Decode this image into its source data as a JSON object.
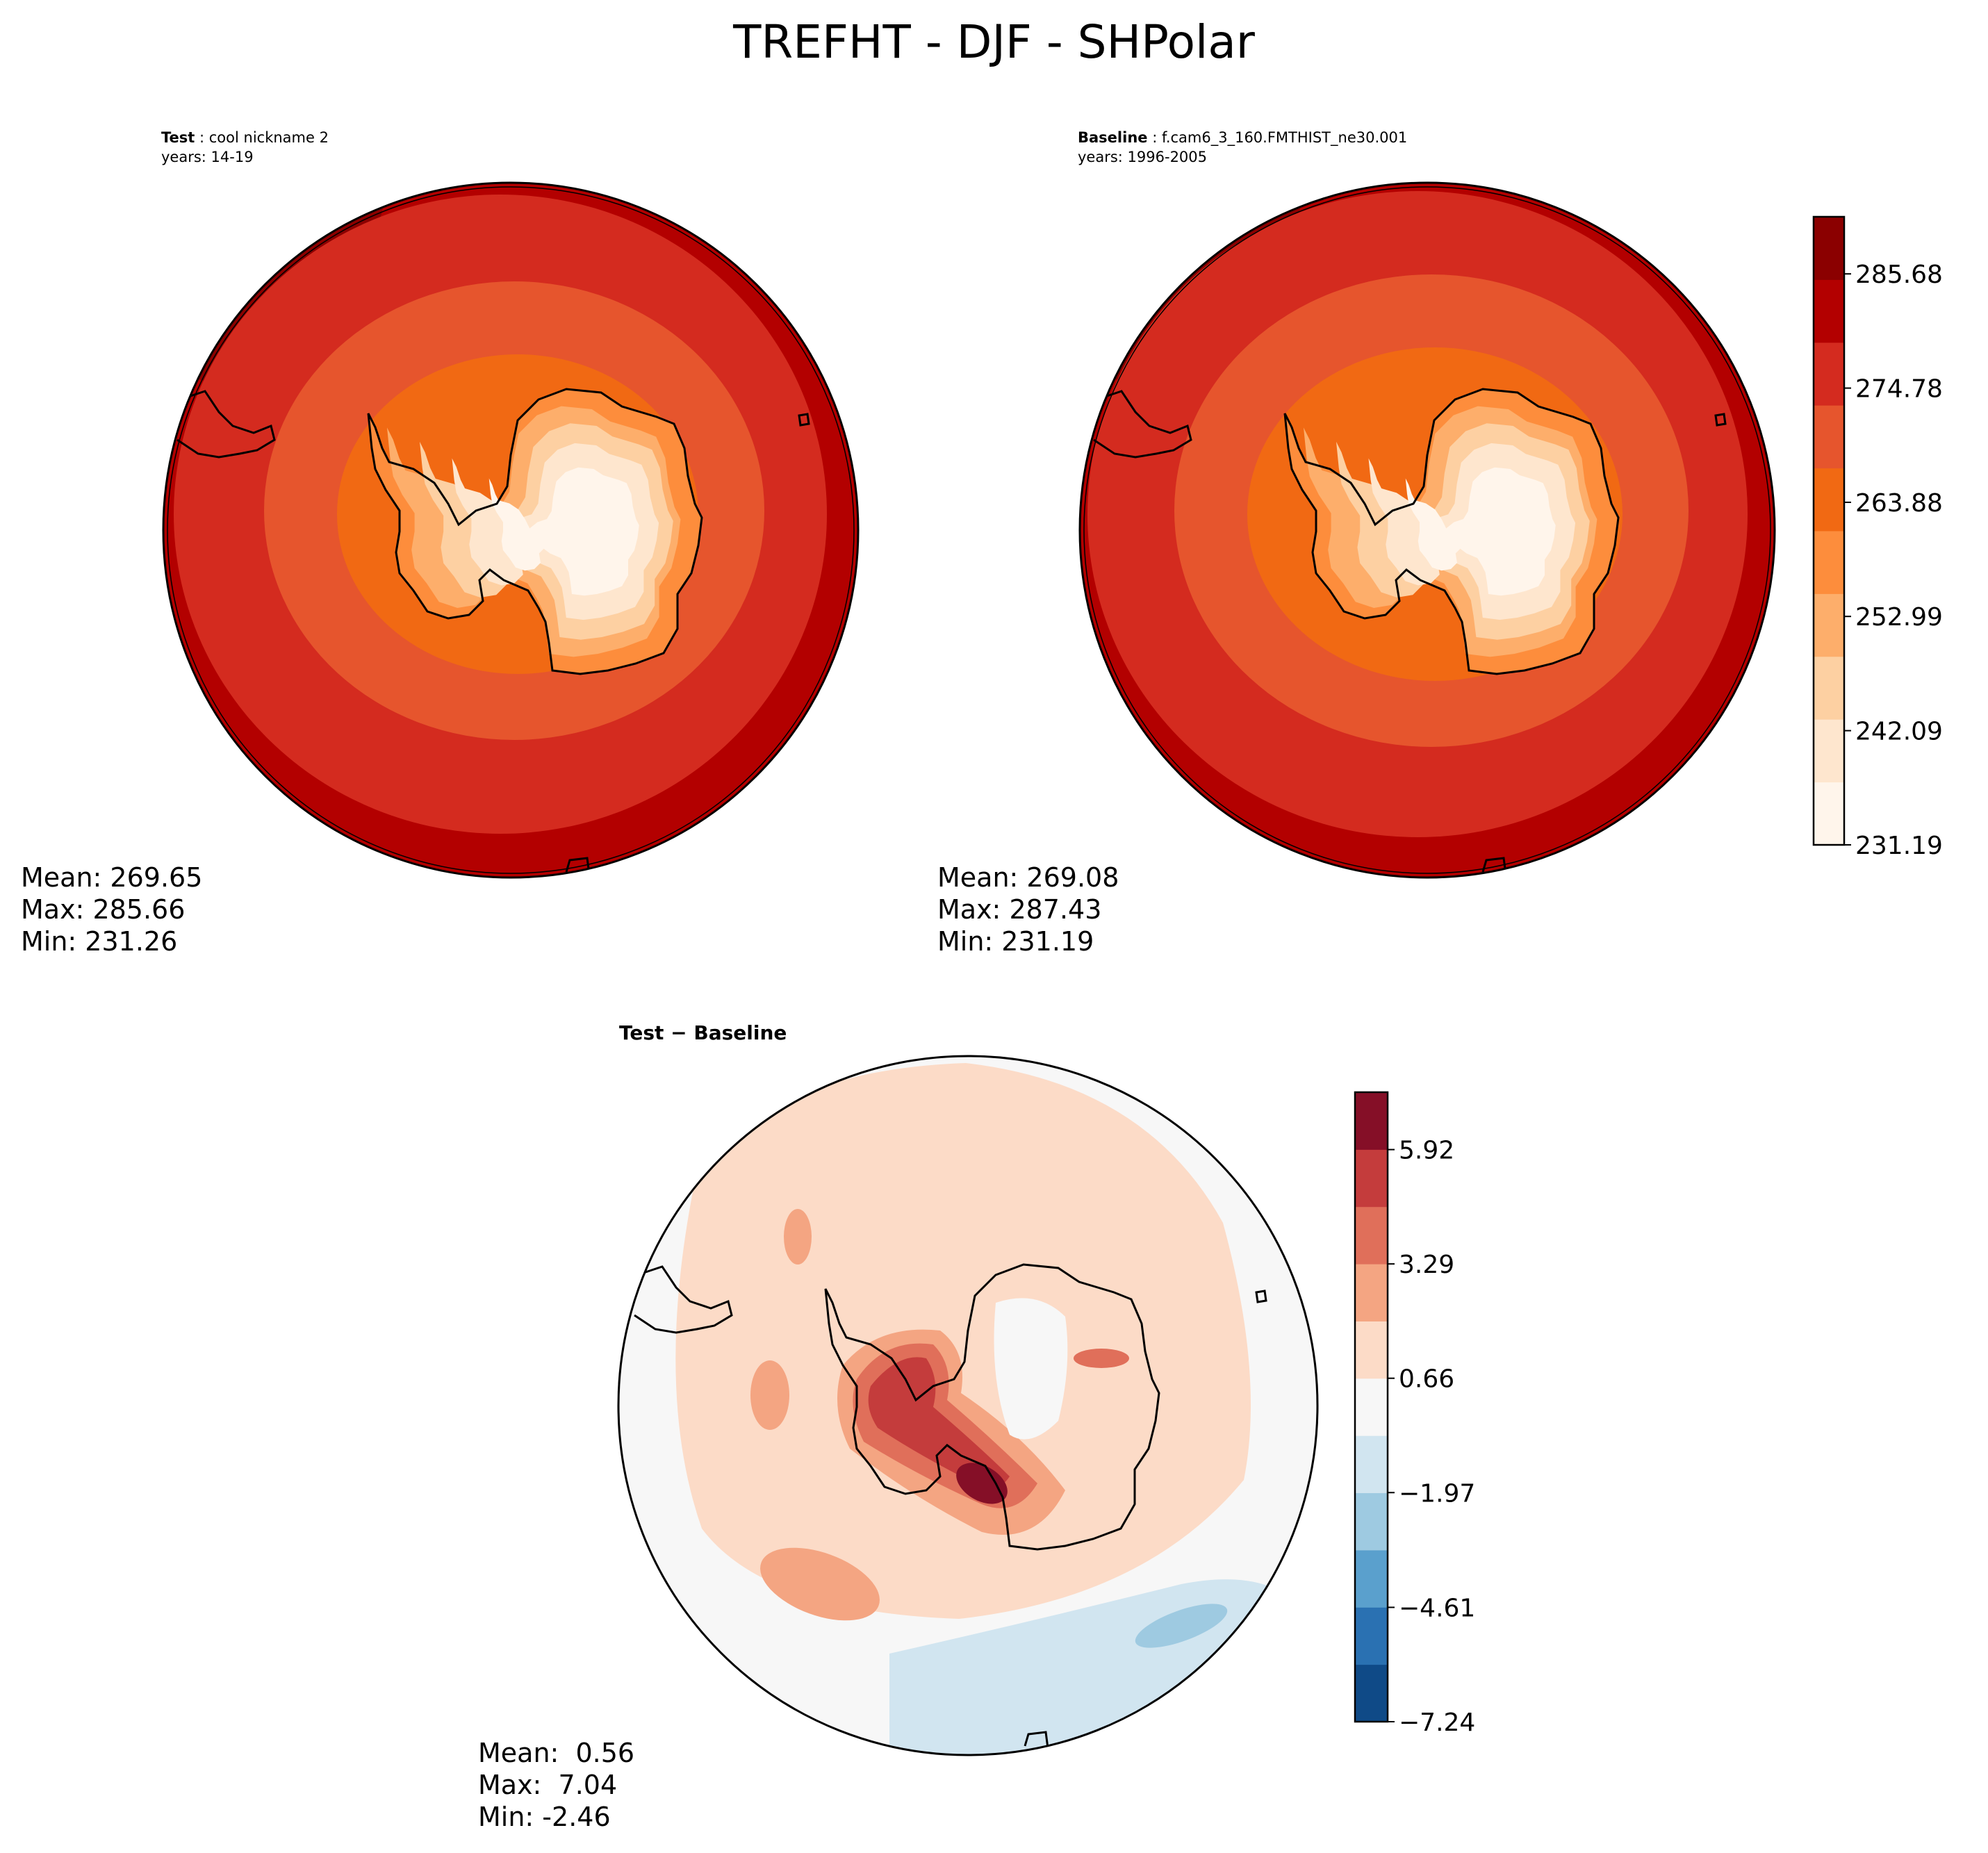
{
  "main_title": "TREFHT - DJF - SHPolar",
  "colors": {
    "reds": [
      "#fff5eb",
      "#fee6ce",
      "#fdd0a2",
      "#fdae6b",
      "#fd8d3c",
      "#f16913",
      "#e6552d",
      "#d42b1f",
      "#b30000",
      "#8b0000"
    ],
    "diverging": [
      "#0f4a87",
      "#2a71b2",
      "#5aa0cd",
      "#9ecae1",
      "#d1e5f0",
      "#f7f7f7",
      "#fcdbc7",
      "#f4a582",
      "#e06f5a",
      "#c43c3c",
      "#850f27"
    ],
    "land_outline": "#000000"
  },
  "panels": {
    "test": {
      "label": "Test",
      "name": "cool nickname 2",
      "years": "years: 14-19",
      "stats": {
        "mean": "Mean: 269.65",
        "max": "Max: 285.66",
        "min": "Min: 231.26"
      }
    },
    "baseline": {
      "label": "Baseline",
      "name": "f.cam6_3_160.FMTHIST_ne30.001",
      "years": "years: 1996-2005",
      "stats": {
        "mean": "Mean: 269.08",
        "max": "Max: 287.43",
        "min": "Min: 231.19"
      }
    },
    "diff": {
      "title": "Test − Baseline",
      "stats": {
        "mean": "Mean:  0.56",
        "max": "Max:  7.04",
        "min": "Min: -2.46"
      }
    }
  },
  "chart_data": [
    {
      "type": "heatmap",
      "projection": "south-polar-stereographic",
      "title": "Test: cool nickname 2",
      "subtitle": "years: 14-19",
      "variable": "TREFHT",
      "season": "DJF",
      "region": "SHPolar",
      "stats": {
        "mean": 269.65,
        "max": 285.66,
        "min": 231.26
      },
      "colorbar_ref": "shared-reds"
    },
    {
      "type": "heatmap",
      "projection": "south-polar-stereographic",
      "title": "Baseline: f.cam6_3_160.FMTHIST_ne30.001",
      "subtitle": "years: 1996-2005",
      "variable": "TREFHT",
      "season": "DJF",
      "region": "SHPolar",
      "stats": {
        "mean": 269.08,
        "max": 287.43,
        "min": 231.19
      },
      "colorbar": {
        "levels": 10,
        "range": [
          231.19,
          291.13
        ],
        "tick_values": [
          231.19,
          242.09,
          252.99,
          263.88,
          274.78,
          285.68
        ],
        "tick_labels": [
          "231.19",
          "242.09",
          "252.99",
          "263.88",
          "274.78",
          "285.68"
        ]
      }
    },
    {
      "type": "heatmap",
      "projection": "south-polar-stereographic",
      "title": "Test − Baseline",
      "stats": {
        "mean": 0.56,
        "max": 7.04,
        "min": -2.46
      },
      "colorbar": {
        "levels": 11,
        "range": [
          -7.24,
          7.24
        ],
        "tick_values": [
          -7.24,
          -4.61,
          -1.97,
          0.66,
          3.29,
          5.92
        ],
        "tick_labels": [
          "−7.24",
          "−4.61",
          "−1.97",
          "0.66",
          "3.29",
          "5.92"
        ]
      }
    }
  ]
}
